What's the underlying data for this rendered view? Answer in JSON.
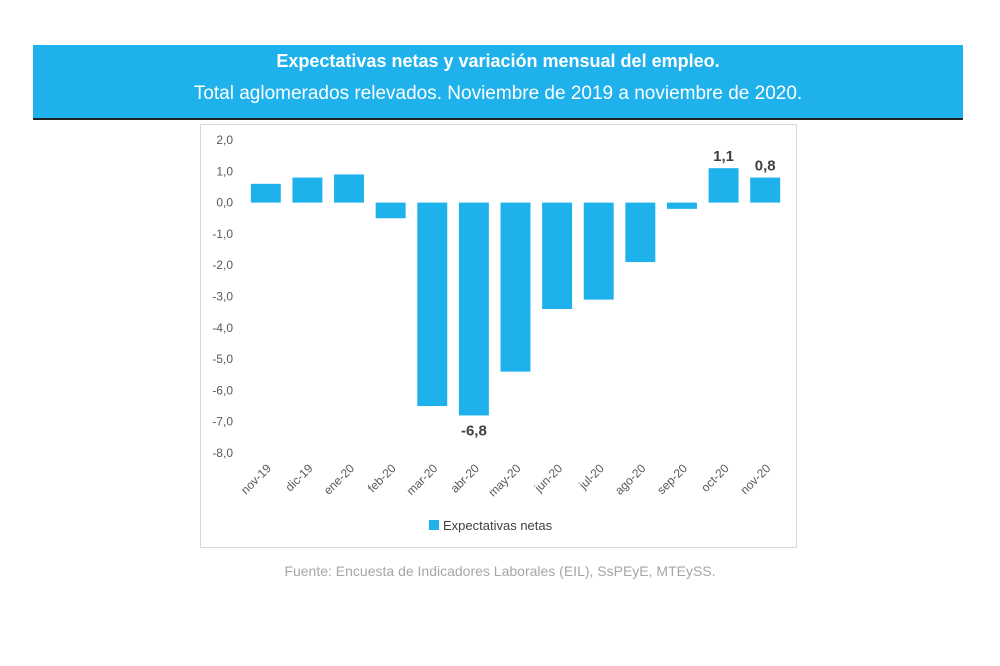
{
  "header": {
    "title": "Expectativas netas y variación mensual del empleo.",
    "subtitle": "Total aglomerados relevados. Noviembre de 2019 a noviembre de 2020."
  },
  "source": "Fuente: Encuesta de Indicadores Laborales (EIL), SsPEyE, MTEySS.",
  "colors": {
    "banner": "#1eb1ec",
    "bar": "#1eb1ec"
  },
  "chart_data": {
    "type": "bar",
    "title": "",
    "xlabel": "",
    "ylabel": "",
    "ylim": [
      -8,
      2
    ],
    "yticks": [
      "2,0",
      "1,0",
      "0,0",
      "-1,0",
      "-2,0",
      "-3,0",
      "-4,0",
      "-5,0",
      "-6,0",
      "-7,0",
      "-8,0"
    ],
    "categories": [
      "nov-19",
      "dic-19",
      "ene-20",
      "feb-20",
      "mar-20",
      "abr-20",
      "may-20",
      "jun-20",
      "jul-20",
      "ago-20",
      "sep-20",
      "oct-20",
      "nov-20"
    ],
    "series": [
      {
        "name": "Expectativas netas",
        "values": [
          0.6,
          0.8,
          0.9,
          -0.5,
          -6.5,
          -6.8,
          -5.4,
          -3.4,
          -3.1,
          -1.9,
          -0.2,
          1.1,
          0.8
        ]
      }
    ],
    "data_labels": [
      {
        "category": "abr-20",
        "text": "-6,8"
      },
      {
        "category": "oct-20",
        "text": "1,1"
      },
      {
        "category": "nov-20",
        "text": "0,8"
      }
    ],
    "legend": "bottom",
    "grid": false
  }
}
